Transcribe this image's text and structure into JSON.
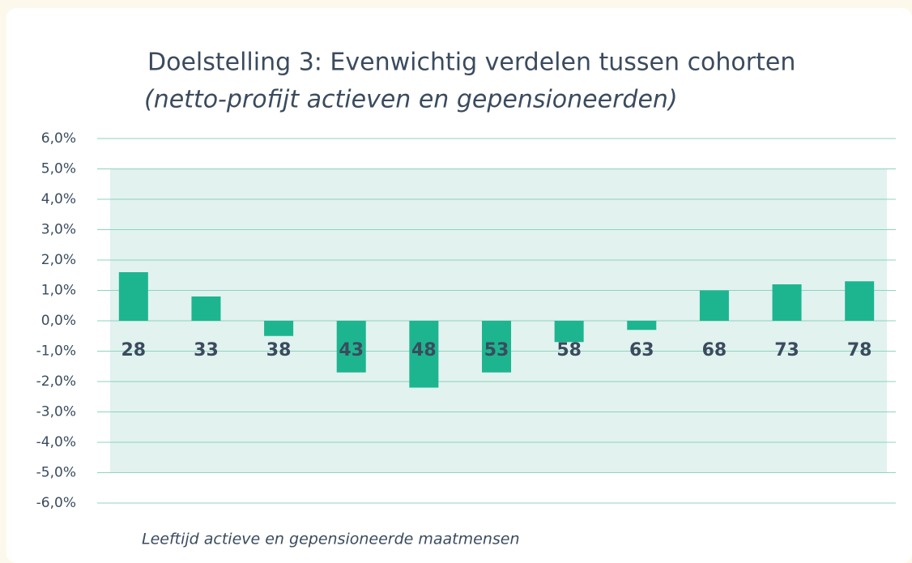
{
  "chart_data": {
    "type": "bar",
    "title": "Doelstelling 3: Evenwichtig verdelen tussen cohorten",
    "subtitle": "(netto-profijt actieven en gepensioneerden)",
    "x_label": "Leeftijd actieve en gepensioneerde maatmensen",
    "categories": [
      "28",
      "33",
      "38",
      "43",
      "48",
      "53",
      "58",
      "63",
      "68",
      "73",
      "78"
    ],
    "values": [
      1.6,
      0.8,
      -0.5,
      -1.7,
      -2.2,
      -1.7,
      -0.7,
      -0.3,
      1.0,
      1.2,
      1.3
    ],
    "color": "#1db58f",
    "ylim": [
      -6,
      6
    ],
    "yticks": [
      {
        "value": 6,
        "label": "6,0%"
      },
      {
        "value": 5,
        "label": "5,0%"
      },
      {
        "value": 4,
        "label": "4,0%"
      },
      {
        "value": 3,
        "label": "3,0%"
      },
      {
        "value": 2,
        "label": "2,0%"
      },
      {
        "value": 1,
        "label": "1,0%"
      },
      {
        "value": 0,
        "label": "0,0%"
      },
      {
        "value": -1,
        "label": "-1,0%"
      },
      {
        "value": -2,
        "label": "-2,0%"
      },
      {
        "value": -3,
        "label": "-3,0%"
      },
      {
        "value": -4,
        "label": "-4,0%"
      },
      {
        "value": -5,
        "label": "-5,0%"
      },
      {
        "value": -6,
        "label": "-6,0%"
      }
    ],
    "grid": true
  }
}
